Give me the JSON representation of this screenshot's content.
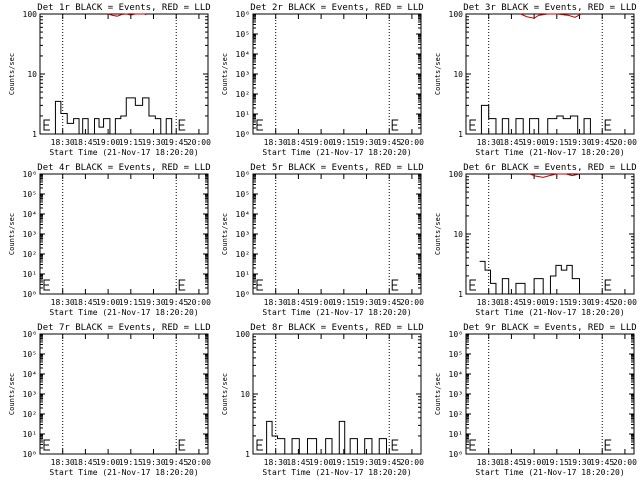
{
  "chart_data": [
    {
      "type": "line",
      "title": "Det 1r BLACK = Events, RED = LLD",
      "xlabel": "Start Time (21-Nov-17 18:20:20)",
      "ylabel": "Counts/sec",
      "yscale": "log",
      "yticks": [
        {
          "v": 1,
          "l": "1"
        },
        {
          "v": 10,
          "l": "10"
        },
        {
          "v": 100,
          "l": "100"
        }
      ],
      "xticks": [
        "18:30",
        "18:45",
        "19:00",
        "19:15",
        "19:30",
        "19:45",
        "20:00"
      ],
      "events": [
        [
          18.36,
          1
        ],
        [
          18.42,
          3.5
        ],
        [
          18.48,
          2.2
        ],
        [
          18.55,
          1.5
        ],
        [
          18.62,
          1.8
        ],
        [
          18.68,
          1
        ],
        [
          18.72,
          1.8
        ],
        [
          18.78,
          1
        ],
        [
          18.85,
          1.8
        ],
        [
          18.9,
          1.3
        ],
        [
          18.95,
          1.8
        ],
        [
          19.02,
          1
        ],
        [
          19.08,
          1.8
        ],
        [
          19.14,
          2
        ],
        [
          19.2,
          4
        ],
        [
          19.3,
          3
        ],
        [
          19.38,
          4
        ],
        [
          19.45,
          2
        ],
        [
          19.52,
          1.8
        ],
        [
          19.58,
          1
        ],
        [
          19.64,
          1.8
        ],
        [
          19.7,
          1
        ]
      ],
      "lld": [
        [
          19.0,
          100
        ],
        [
          19.05,
          95
        ],
        [
          19.1,
          92
        ],
        [
          19.15,
          98
        ],
        [
          19.2,
          100
        ],
        [
          19.25,
          96
        ],
        [
          19.3,
          100
        ],
        [
          19.4,
          100
        ],
        [
          19.42,
          97
        ]
      ]
    },
    {
      "type": "line",
      "title": "Det 2r BLACK = Events, RED = LLD",
      "xlabel": "Start Time (21-Nov-17 18:20:20)",
      "ylabel": "Counts/sec",
      "yscale": "log",
      "yticks": [
        {
          "v": 1,
          "l": "10⁰"
        },
        {
          "v": 10,
          "l": "10¹"
        },
        {
          "v": 100,
          "l": "10²"
        },
        {
          "v": 1000,
          "l": "10³"
        },
        {
          "v": 10000,
          "l": "10⁴"
        },
        {
          "v": 100000,
          "l": "10⁵"
        },
        {
          "v": 1000000,
          "l": "10⁶"
        }
      ],
      "xticks": [
        "18:30",
        "18:45",
        "19:00",
        "19:15",
        "19:30",
        "19:45",
        "20:00"
      ],
      "events": [],
      "lld": []
    },
    {
      "type": "line",
      "title": "Det 3r BLACK = Events, RED = LLD",
      "xlabel": "Start Time (21-Nov-17 18:20:20)",
      "ylabel": "Counts/sec",
      "yscale": "log",
      "yticks": [
        {
          "v": 1,
          "l": "1"
        },
        {
          "v": 10,
          "l": "10"
        },
        {
          "v": 100,
          "l": "100"
        }
      ],
      "xticks": [
        "18:30",
        "18:45",
        "19:00",
        "19:15",
        "19:30",
        "19:45",
        "20:00"
      ],
      "events": [
        [
          18.36,
          1
        ],
        [
          18.42,
          3
        ],
        [
          18.5,
          1.8
        ],
        [
          18.58,
          1
        ],
        [
          18.65,
          1.8
        ],
        [
          18.72,
          1
        ],
        [
          18.8,
          1.8
        ],
        [
          18.88,
          1
        ],
        [
          18.95,
          1.8
        ],
        [
          19.05,
          1
        ],
        [
          19.15,
          1.8
        ],
        [
          19.25,
          2
        ],
        [
          19.32,
          1.8
        ],
        [
          19.4,
          2
        ],
        [
          19.48,
          1
        ],
        [
          19.55,
          1.8
        ],
        [
          19.62,
          1
        ]
      ],
      "lld": [
        [
          18.85,
          100
        ],
        [
          18.92,
          90
        ],
        [
          19.0,
          85
        ],
        [
          19.05,
          95
        ],
        [
          19.15,
          100
        ],
        [
          19.25,
          100
        ],
        [
          19.38,
          95
        ],
        [
          19.45,
          88
        ],
        [
          19.52,
          100
        ]
      ]
    },
    {
      "type": "line",
      "title": "Det 4r BLACK = Events, RED = LLD",
      "xlabel": "Start Time (21-Nov-17 18:20:20)",
      "ylabel": "Counts/sec",
      "yscale": "log",
      "yticks": [
        {
          "v": 1,
          "l": "10⁰"
        },
        {
          "v": 10,
          "l": "10¹"
        },
        {
          "v": 100,
          "l": "10²"
        },
        {
          "v": 1000,
          "l": "10³"
        },
        {
          "v": 10000,
          "l": "10⁴"
        },
        {
          "v": 100000,
          "l": "10⁵"
        },
        {
          "v": 1000000,
          "l": "10⁶"
        }
      ],
      "xticks": [
        "18:30",
        "18:45",
        "19:00",
        "19:15",
        "19:30",
        "19:45",
        "20:00"
      ],
      "events": [],
      "lld": []
    },
    {
      "type": "line",
      "title": "Det 5r BLACK = Events, RED = LLD",
      "xlabel": "Start Time (21-Nov-17 18:20:20)",
      "ylabel": "Counts/sec",
      "yscale": "log",
      "yticks": [
        {
          "v": 1,
          "l": "10⁰"
        },
        {
          "v": 10,
          "l": "10¹"
        },
        {
          "v": 100,
          "l": "10²"
        },
        {
          "v": 1000,
          "l": "10³"
        },
        {
          "v": 10000,
          "l": "10⁴"
        },
        {
          "v": 100000,
          "l": "10⁵"
        },
        {
          "v": 1000000,
          "l": "10⁶"
        }
      ],
      "xticks": [
        "18:30",
        "18:45",
        "19:00",
        "19:15",
        "19:30",
        "19:45",
        "20:00"
      ],
      "events": [],
      "lld": []
    },
    {
      "type": "line",
      "title": "Det 6r BLACK = Events, RED = LLD",
      "xlabel": "Start Time (21-Nov-17 18:20:20)",
      "ylabel": "Counts/sec",
      "yscale": "log",
      "yticks": [
        {
          "v": 1,
          "l": "1"
        },
        {
          "v": 10,
          "l": "10"
        },
        {
          "v": 100,
          "l": "100"
        }
      ],
      "xticks": [
        "18:30",
        "18:45",
        "19:00",
        "19:15",
        "19:30",
        "19:45",
        "20:00"
      ],
      "events": [
        [
          18.4,
          3.5
        ],
        [
          18.46,
          2.5
        ],
        [
          18.52,
          1.5
        ],
        [
          18.58,
          1
        ],
        [
          18.65,
          1.8
        ],
        [
          18.72,
          1
        ],
        [
          18.8,
          1.5
        ],
        [
          18.9,
          1
        ],
        [
          19.0,
          1.8
        ],
        [
          19.1,
          1
        ],
        [
          19.18,
          2
        ],
        [
          19.24,
          3
        ],
        [
          19.3,
          2.5
        ],
        [
          19.36,
          3
        ],
        [
          19.42,
          1.8
        ],
        [
          19.5,
          1
        ]
      ],
      "lld": [
        [
          18.95,
          100
        ],
        [
          19.02,
          92
        ],
        [
          19.1,
          88
        ],
        [
          19.18,
          95
        ],
        [
          19.25,
          100
        ],
        [
          19.35,
          100
        ],
        [
          19.42,
          94
        ],
        [
          19.5,
          100
        ]
      ]
    },
    {
      "type": "line",
      "title": "Det 7r BLACK = Events, RED = LLD",
      "xlabel": "Start Time (21-Nov-17 18:20:20)",
      "ylabel": "Counts/sec",
      "yscale": "log",
      "yticks": [
        {
          "v": 1,
          "l": "10⁰"
        },
        {
          "v": 10,
          "l": "10¹"
        },
        {
          "v": 100,
          "l": "10²"
        },
        {
          "v": 1000,
          "l": "10³"
        },
        {
          "v": 10000,
          "l": "10⁴"
        },
        {
          "v": 100000,
          "l": "10⁵"
        },
        {
          "v": 1000000,
          "l": "10⁶"
        }
      ],
      "xticks": [
        "18:30",
        "18:45",
        "19:00",
        "19:15",
        "19:30",
        "19:45",
        "20:00"
      ],
      "events": [],
      "lld": []
    },
    {
      "type": "line",
      "title": "Det 8r BLACK = Events, RED = LLD",
      "xlabel": "Start Time (21-Nov-17 18:20:20)",
      "ylabel": "Counts/sec",
      "yscale": "log",
      "yticks": [
        {
          "v": 1,
          "l": "1"
        },
        {
          "v": 10,
          "l": "10"
        },
        {
          "v": 100,
          "l": "100"
        }
      ],
      "xticks": [
        "18:30",
        "18:45",
        "19:00",
        "19:15",
        "19:30",
        "19:45",
        "20:00"
      ],
      "events": [
        [
          18.36,
          1
        ],
        [
          18.4,
          3.5
        ],
        [
          18.46,
          2
        ],
        [
          18.52,
          1.8
        ],
        [
          18.6,
          1
        ],
        [
          18.68,
          1.8
        ],
        [
          18.76,
          1
        ],
        [
          18.85,
          1.8
        ],
        [
          18.95,
          1
        ],
        [
          19.05,
          1.8
        ],
        [
          19.12,
          1
        ],
        [
          19.2,
          3.5
        ],
        [
          19.26,
          1
        ],
        [
          19.32,
          1.8
        ],
        [
          19.4,
          1
        ],
        [
          19.48,
          1.8
        ],
        [
          19.56,
          1
        ],
        [
          19.64,
          1.8
        ],
        [
          19.72,
          1
        ]
      ],
      "lld": []
    },
    {
      "type": "line",
      "title": "Det 9r BLACK = Events, RED = LLD",
      "xlabel": "Start Time (21-Nov-17 18:20:20)",
      "ylabel": "Counts/sec",
      "yscale": "log",
      "yticks": [
        {
          "v": 1,
          "l": "10⁰"
        },
        {
          "v": 10,
          "l": "10¹"
        },
        {
          "v": 100,
          "l": "10²"
        },
        {
          "v": 1000,
          "l": "10³"
        },
        {
          "v": 10000,
          "l": "10⁴"
        },
        {
          "v": 100000,
          "l": "10⁵"
        },
        {
          "v": 1000000,
          "l": "10⁶"
        }
      ],
      "xticks": [
        "18:30",
        "18:45",
        "19:00",
        "19:15",
        "19:30",
        "19:45",
        "20:00"
      ],
      "events": [],
      "lld": []
    }
  ],
  "colors": {
    "events": "#000000",
    "lld": "#cc0000",
    "axes": "#000000"
  }
}
